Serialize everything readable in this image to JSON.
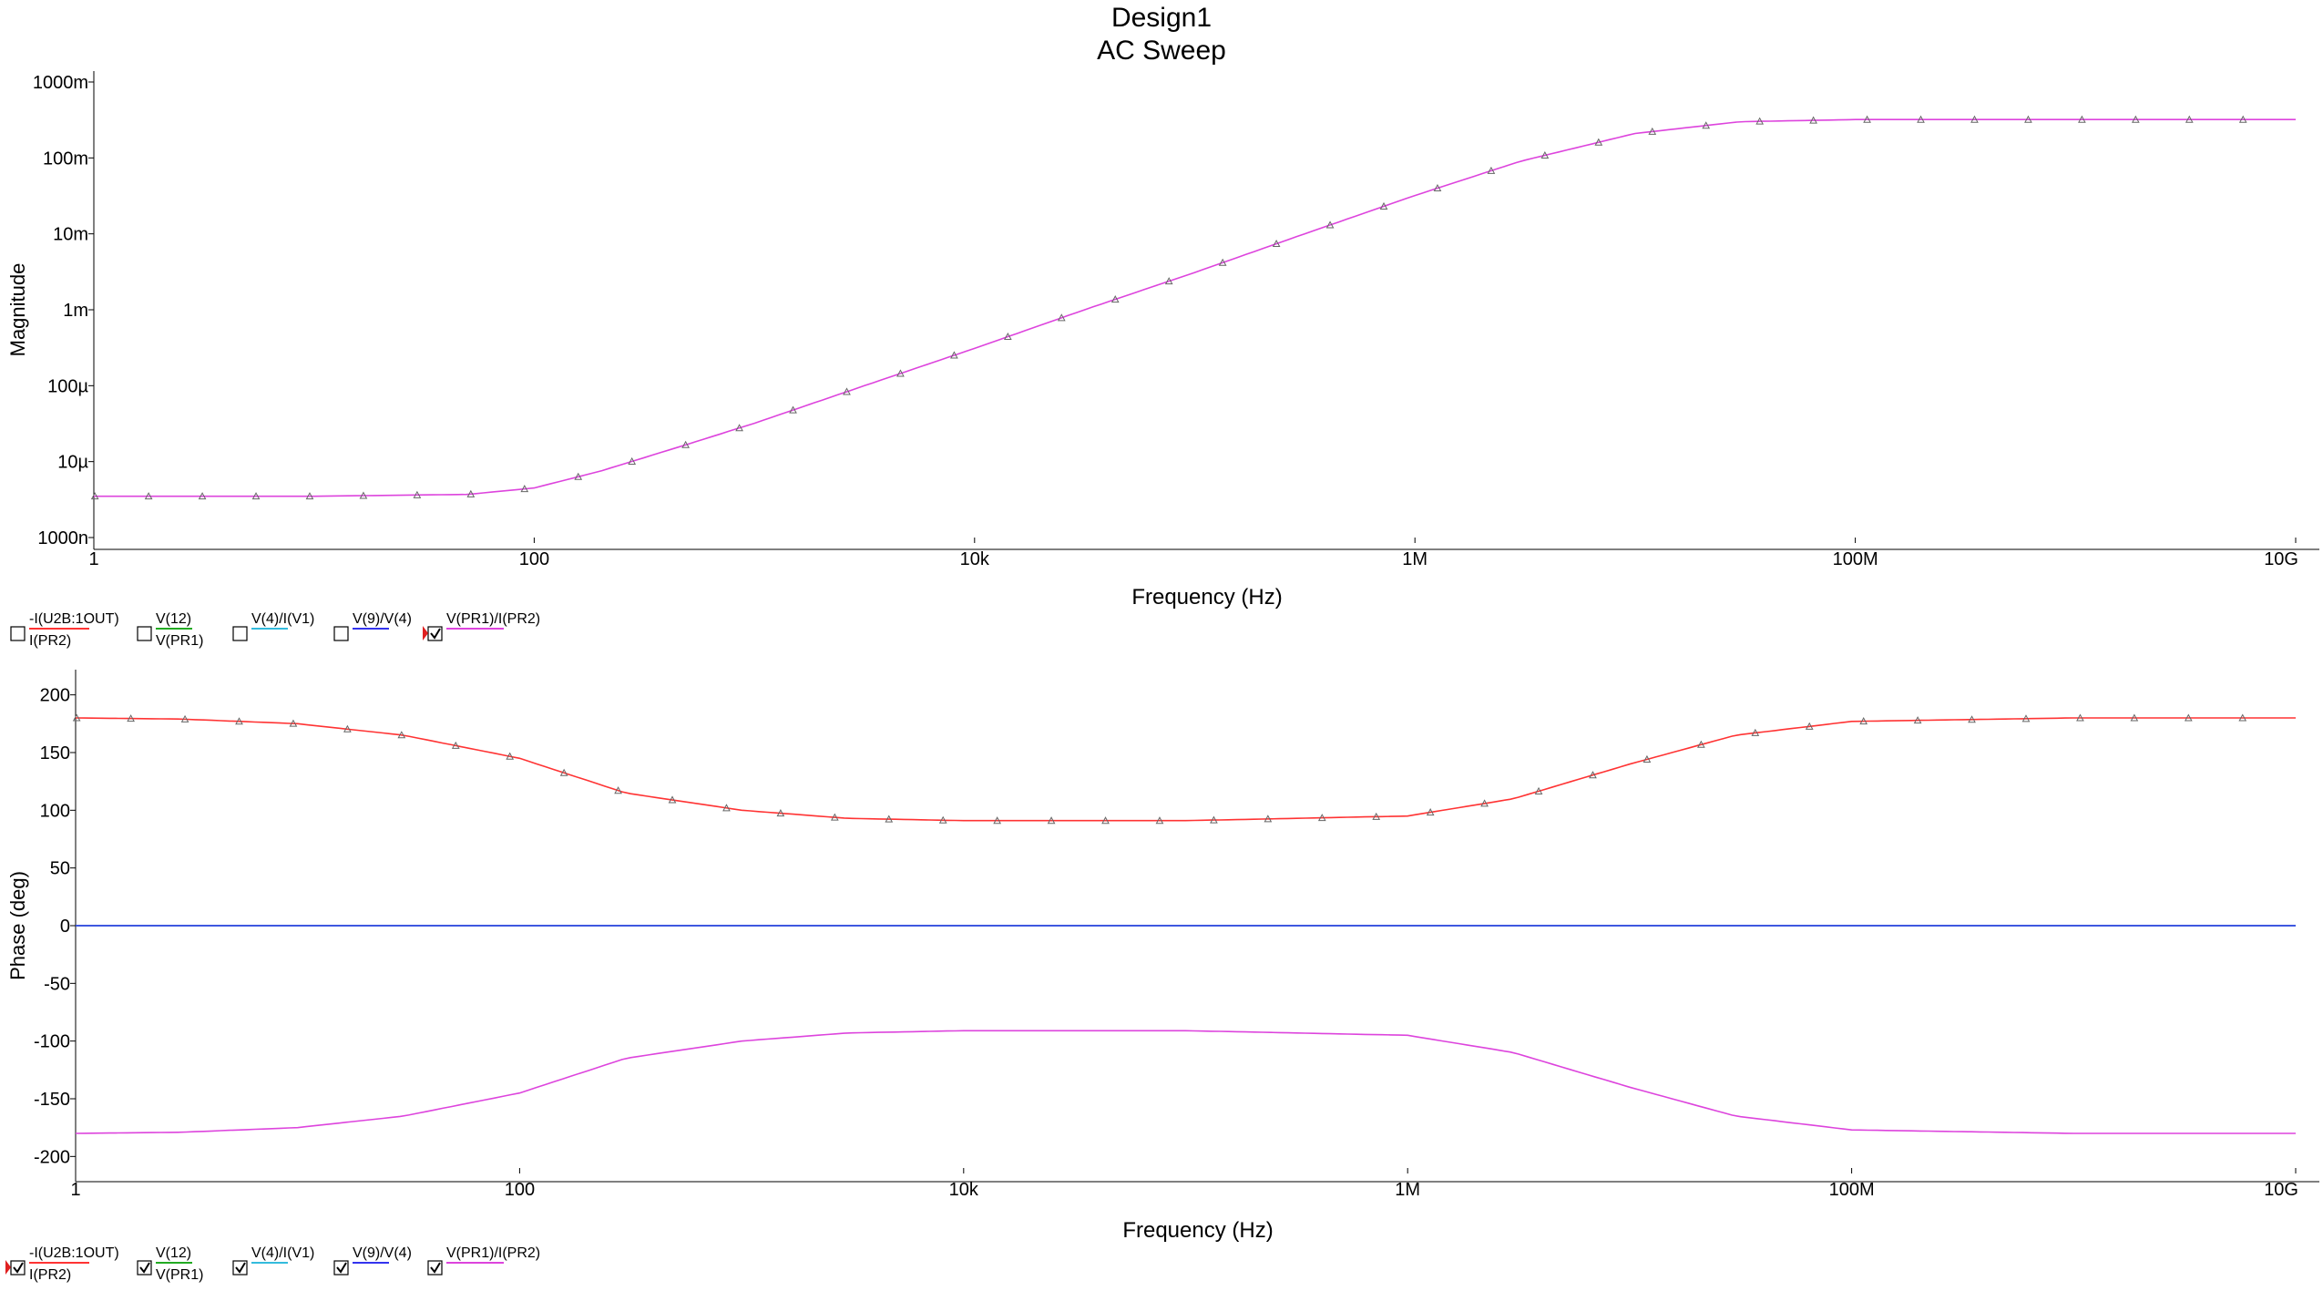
{
  "design_title": "Design1",
  "analysis_title": "AC Sweep",
  "legend_entries": [
    {
      "label": "-I(U2B:1OUT)",
      "label2": "I(PR2)",
      "color": "#ff3333"
    },
    {
      "label": "V(12)",
      "label2": "V(PR1)",
      "color": "#22aa22"
    },
    {
      "label": "V(4)/I(V1)",
      "label2": "",
      "color": "#33bbdd"
    },
    {
      "label": "V(9)/V(4)",
      "label2": "",
      "color": "#3333ee"
    },
    {
      "label": "V(PR1)/I(PR2)",
      "label2": "",
      "color": "#dd44dd"
    }
  ],
  "legend_states": {
    "magnitude": [
      false,
      false,
      false,
      false,
      true
    ],
    "phase": [
      true,
      true,
      true,
      true,
      true
    ]
  },
  "chart_data": [
    {
      "type": "line",
      "title": "",
      "xlabel": "Frequency (Hz)",
      "ylabel": "Magnitude",
      "x_scale": "log",
      "y_scale": "log",
      "xlim": [
        1,
        10000000000
      ],
      "ylim": [
        1e-06,
        1
      ],
      "x_ticks": [
        {
          "value": 1,
          "label": "1"
        },
        {
          "value": 100,
          "label": "100"
        },
        {
          "value": 10000,
          "label": "10k"
        },
        {
          "value": 1000000,
          "label": "1M"
        },
        {
          "value": 100000000,
          "label": "100M"
        },
        {
          "value": 10000000000,
          "label": "10G"
        }
      ],
      "y_ticks": [
        {
          "value": 1,
          "label": "1000m"
        },
        {
          "value": 0.1,
          "label": "100m"
        },
        {
          "value": 0.01,
          "label": "10m"
        },
        {
          "value": 0.001,
          "label": "1m"
        },
        {
          "value": 0.0001,
          "label": "100µ"
        },
        {
          "value": 1e-05,
          "label": "10µ"
        },
        {
          "value": 1e-06,
          "label": "1000n"
        }
      ],
      "grid": false,
      "series": [
        {
          "name": "V(PR1)/I(PR2)",
          "color": "#dd44dd",
          "markers": true,
          "x": [
            1,
            10,
            50,
            100,
            200,
            500,
            1000,
            3000,
            10000,
            30000,
            100000,
            300000,
            1000000,
            3000000,
            10000000,
            30000000,
            100000000,
            1000000000,
            10000000000
          ],
          "y": [
            3.5e-06,
            3.5e-06,
            3.7e-06,
            4.5e-06,
            7.5e-06,
            1.7e-05,
            3.2e-05,
            9.5e-05,
            0.00031,
            0.00095,
            0.0031,
            0.0095,
            0.032,
            0.09,
            0.21,
            0.3,
            0.32,
            0.32,
            0.32
          ]
        }
      ]
    },
    {
      "type": "line",
      "title": "",
      "xlabel": "Frequency (Hz)",
      "ylabel": "Phase (deg)",
      "x_scale": "log",
      "xlim": [
        1,
        10000000000
      ],
      "ylim": [
        -210,
        210
      ],
      "x_ticks": [
        {
          "value": 1,
          "label": "1"
        },
        {
          "value": 100,
          "label": "100"
        },
        {
          "value": 10000,
          "label": "10k"
        },
        {
          "value": 1000000,
          "label": "1M"
        },
        {
          "value": 100000000,
          "label": "100M"
        },
        {
          "value": 10000000000,
          "label": "10G"
        }
      ],
      "y_ticks": [
        {
          "value": 200,
          "label": "200"
        },
        {
          "value": 150,
          "label": "150"
        },
        {
          "value": 100,
          "label": "100"
        },
        {
          "value": 50,
          "label": "50"
        },
        {
          "value": 0,
          "label": "0"
        },
        {
          "value": -50,
          "label": "-50"
        },
        {
          "value": -100,
          "label": "-100"
        },
        {
          "value": -150,
          "label": "-150"
        },
        {
          "value": -200,
          "label": "-200"
        }
      ],
      "grid": false,
      "series": [
        {
          "name": "-I(U2B:1OUT)",
          "color": "#ff3333",
          "markers": true,
          "x": [
            1,
            3,
            10,
            30,
            100,
            300,
            1000,
            3000,
            10000,
            100000,
            1000000,
            3000000,
            10000000,
            30000000,
            100000000,
            1000000000,
            10000000000
          ],
          "y": [
            180,
            179,
            175,
            165,
            145,
            115,
            100,
            93,
            91,
            91,
            95,
            110,
            140,
            165,
            177,
            180,
            180
          ]
        },
        {
          "name": "V(PR1)",
          "color": "#22aa22",
          "markers": false,
          "x": [
            1,
            10000000000
          ],
          "y": [
            0,
            0
          ]
        },
        {
          "name": "V(4)/I(V1)",
          "color": "#33bbdd",
          "markers": false,
          "x": [
            1,
            10000000000
          ],
          "y": [
            0,
            0
          ]
        },
        {
          "name": "V(9)/V(4)",
          "color": "#3333ee",
          "markers": false,
          "x": [
            1,
            10000000000
          ],
          "y": [
            0,
            0
          ]
        },
        {
          "name": "V(PR1)/I(PR2)",
          "color": "#dd44dd",
          "markers": false,
          "x": [
            1,
            3,
            10,
            30,
            100,
            300,
            1000,
            3000,
            10000,
            100000,
            1000000,
            3000000,
            10000000,
            30000000,
            100000000,
            1000000000,
            10000000000
          ],
          "y": [
            -180,
            -179,
            -175,
            -165,
            -145,
            -115,
            -100,
            -93,
            -91,
            -91,
            -95,
            -110,
            -140,
            -165,
            -177,
            -180,
            -180
          ]
        }
      ]
    }
  ]
}
